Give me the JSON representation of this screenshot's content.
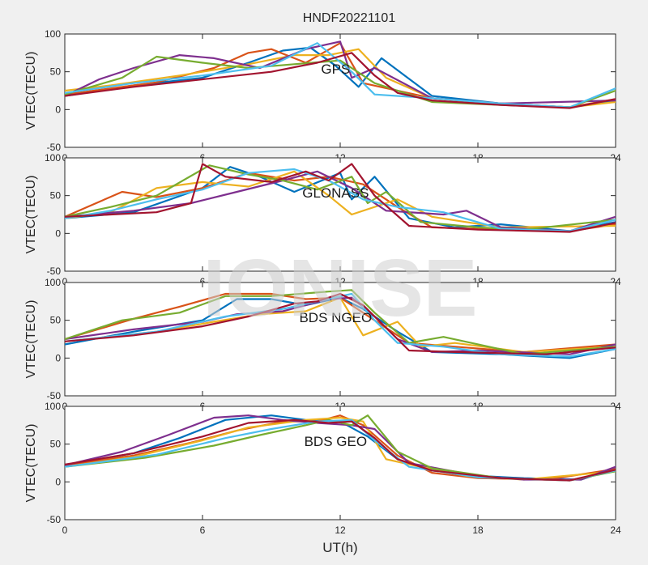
{
  "figure": {
    "title": "HNDF20221101",
    "xlabel": "UT(h)",
    "watermark": "IONISE"
  },
  "chart_data": [
    {
      "type": "line",
      "label": "GPS",
      "title": "HNDF20221101",
      "ylabel": "VTEC(TECU)",
      "xlabel": "",
      "xlim": [
        0,
        24
      ],
      "ylim": [
        -50,
        100
      ],
      "xticks": [
        0,
        6,
        12,
        18,
        24
      ],
      "yticks": [
        -50,
        0,
        50,
        100
      ],
      "grid": false,
      "series": [
        {
          "color": "#0072BD",
          "x": [
            0,
            3,
            6,
            8,
            9.5,
            10.7,
            11.8,
            12.8,
            13.8,
            16,
            19,
            22,
            24
          ],
          "y": [
            18,
            32,
            42,
            62,
            78,
            82,
            58,
            30,
            68,
            18,
            8,
            3,
            12
          ]
        },
        {
          "color": "#D95319",
          "x": [
            0,
            4,
            6.5,
            8,
            9,
            10.5,
            12,
            13,
            16,
            19,
            22,
            24
          ],
          "y": [
            20,
            36,
            55,
            75,
            80,
            62,
            88,
            35,
            15,
            8,
            3,
            14
          ]
        },
        {
          "color": "#EDB120",
          "x": [
            0,
            2,
            5,
            8,
            10,
            11.5,
            12.8,
            14,
            16,
            19,
            22,
            24
          ],
          "y": [
            25,
            32,
            45,
            60,
            72,
            72,
            80,
            42,
            15,
            7,
            3,
            10
          ]
        },
        {
          "color": "#7E2F8E",
          "x": [
            0,
            1.5,
            3,
            5,
            6.5,
            8.5,
            10.5,
            12,
            12.5,
            13.5,
            16,
            19,
            24
          ],
          "y": [
            18,
            40,
            55,
            72,
            68,
            55,
            80,
            90,
            42,
            55,
            15,
            8,
            12
          ]
        },
        {
          "color": "#77AC30",
          "x": [
            0,
            2.5,
            4,
            6,
            8,
            10,
            12,
            13.5,
            16,
            19,
            22,
            24
          ],
          "y": [
            20,
            42,
            70,
            62,
            55,
            60,
            65,
            35,
            10,
            6,
            3,
            25
          ]
        },
        {
          "color": "#4DBEEE",
          "x": [
            0,
            3,
            6,
            9,
            11,
            12.5,
            13.5,
            16,
            19,
            22,
            24
          ],
          "y": [
            22,
            35,
            45,
            58,
            88,
            50,
            20,
            15,
            8,
            3,
            28
          ]
        },
        {
          "color": "#A2142F",
          "x": [
            0,
            3,
            6,
            9,
            11,
            12.5,
            13.5,
            14.5,
            16,
            19,
            22,
            24
          ],
          "y": [
            18,
            30,
            40,
            50,
            62,
            75,
            45,
            22,
            12,
            6,
            2,
            14
          ]
        }
      ]
    },
    {
      "type": "line",
      "label": "GLONASS",
      "ylabel": "VTEC(TECU)",
      "xlabel": "",
      "xlim": [
        0,
        24
      ],
      "ylim": [
        -50,
        100
      ],
      "xticks": [
        0,
        6,
        12,
        18,
        24
      ],
      "yticks": [
        -50,
        0,
        50,
        100
      ],
      "grid": false,
      "series": [
        {
          "color": "#0072BD",
          "x": [
            0,
            3,
            6,
            7.2,
            8.5,
            10,
            12,
            12.5,
            13.5,
            15,
            17,
            19,
            22,
            24
          ],
          "y": [
            20,
            28,
            60,
            88,
            75,
            55,
            80,
            45,
            75,
            20,
            8,
            12,
            3,
            15
          ]
        },
        {
          "color": "#D95319",
          "x": [
            0,
            2.5,
            4,
            6,
            8,
            10,
            11.5,
            13,
            14.5,
            16,
            19,
            22,
            24
          ],
          "y": [
            22,
            55,
            48,
            60,
            80,
            70,
            75,
            65,
            35,
            8,
            5,
            3,
            12
          ]
        },
        {
          "color": "#EDB120",
          "x": [
            0,
            2,
            4,
            6,
            8,
            10,
            11.5,
            12.5,
            14.5,
            16,
            19,
            24
          ],
          "y": [
            20,
            28,
            60,
            68,
            62,
            82,
            50,
            25,
            45,
            22,
            8,
            10
          ]
        },
        {
          "color": "#7E2F8E",
          "x": [
            0,
            3,
            5.5,
            7.5,
            9.5,
            11,
            12.5,
            14,
            16.5,
            17.5,
            19,
            22,
            24
          ],
          "y": [
            22,
            30,
            40,
            55,
            70,
            82,
            60,
            30,
            25,
            30,
            8,
            3,
            22
          ]
        },
        {
          "color": "#77AC30",
          "x": [
            0,
            2,
            4,
            6.3,
            8,
            9.5,
            11,
            12.5,
            13.2,
            14,
            15.5,
            18,
            20,
            24
          ],
          "y": [
            22,
            35,
            50,
            90,
            78,
            70,
            58,
            75,
            40,
            55,
            15,
            8,
            5,
            18
          ]
        },
        {
          "color": "#4DBEEE",
          "x": [
            0,
            2,
            4,
            6,
            8,
            10,
            11.5,
            13,
            14.5,
            16.5,
            19,
            22,
            24
          ],
          "y": [
            20,
            30,
            45,
            58,
            80,
            85,
            70,
            45,
            35,
            28,
            6,
            3,
            18
          ]
        },
        {
          "color": "#A2142F",
          "x": [
            0,
            2,
            4,
            5.5,
            6,
            7,
            9,
            10.5,
            11.5,
            12.5,
            13.5,
            15,
            18,
            22,
            24
          ],
          "y": [
            22,
            25,
            28,
            40,
            92,
            75,
            68,
            82,
            70,
            92,
            50,
            10,
            5,
            2,
            14
          ]
        }
      ]
    },
    {
      "type": "line",
      "label": "BDS NGEO",
      "ylabel": "VTEC(TECU)",
      "xlabel": "",
      "xlim": [
        0,
        24
      ],
      "ylim": [
        -50,
        100
      ],
      "xticks": [
        0,
        6,
        12,
        18,
        24
      ],
      "yticks": [
        -50,
        0,
        50,
        100
      ],
      "grid": false,
      "series": [
        {
          "color": "#0072BD",
          "x": [
            0,
            3,
            6,
            7.5,
            9,
            10.5,
            12,
            13,
            14.5,
            16,
            19,
            22,
            24
          ],
          "y": [
            18,
            35,
            50,
            78,
            78,
            70,
            80,
            65,
            35,
            8,
            5,
            0,
            12
          ]
        },
        {
          "color": "#D95319",
          "x": [
            0,
            3,
            5,
            7,
            9,
            10.5,
            12,
            13.5,
            15,
            17,
            20,
            24
          ],
          "y": [
            25,
            52,
            68,
            85,
            85,
            78,
            80,
            50,
            20,
            15,
            8,
            18
          ]
        },
        {
          "color": "#EDB120",
          "x": [
            0,
            4,
            6.5,
            8.5,
            10.5,
            12,
            13,
            14.5,
            15.5,
            17,
            20,
            24
          ],
          "y": [
            22,
            35,
            48,
            58,
            62,
            80,
            30,
            48,
            15,
            20,
            8,
            15
          ]
        },
        {
          "color": "#7E2F8E",
          "x": [
            0,
            3,
            6,
            7.5,
            9.5,
            11.5,
            12.5,
            13.5,
            14.5,
            16,
            18,
            22,
            24
          ],
          "y": [
            25,
            38,
            48,
            58,
            62,
            78,
            80,
            55,
            25,
            8,
            10,
            5,
            18
          ]
        },
        {
          "color": "#77AC30",
          "x": [
            0,
            2.5,
            5,
            7,
            9,
            11.5,
            12.5,
            13.5,
            15,
            16.5,
            20,
            24
          ],
          "y": [
            25,
            50,
            60,
            82,
            82,
            88,
            90,
            60,
            20,
            28,
            5,
            15
          ]
        },
        {
          "color": "#4DBEEE",
          "x": [
            0,
            4,
            7,
            9.5,
            11,
            12.5,
            13.5,
            14.5,
            16.5,
            19,
            22,
            24
          ],
          "y": [
            22,
            35,
            55,
            65,
            75,
            85,
            50,
            20,
            15,
            5,
            2,
            12
          ]
        },
        {
          "color": "#A2142F",
          "x": [
            0,
            3,
            6,
            8,
            10,
            11,
            12,
            13,
            14,
            15,
            17,
            21,
            24
          ],
          "y": [
            22,
            30,
            42,
            55,
            72,
            75,
            85,
            70,
            40,
            10,
            8,
            5,
            14
          ]
        }
      ]
    },
    {
      "type": "line",
      "label": "BDS GEO",
      "ylabel": "VTEC(TECU)",
      "xlabel": "UT(h)",
      "xlim": [
        0,
        24
      ],
      "ylim": [
        -50,
        100
      ],
      "xticks": [
        0,
        6,
        12,
        18,
        24
      ],
      "yticks": [
        -50,
        0,
        50,
        100
      ],
      "grid": false,
      "series": [
        {
          "color": "#0072BD",
          "x": [
            0,
            3,
            5,
            7,
            9,
            10.5,
            12,
            13.2,
            14.5,
            16,
            18,
            20,
            22.5,
            24
          ],
          "y": [
            22,
            38,
            58,
            82,
            88,
            82,
            80,
            60,
            30,
            15,
            8,
            5,
            3,
            18
          ]
        },
        {
          "color": "#D95319",
          "x": [
            0,
            3,
            5.5,
            7.5,
            9.5,
            11,
            12,
            13,
            14.5,
            16,
            18,
            21,
            24
          ],
          "y": [
            22,
            35,
            52,
            68,
            80,
            80,
            88,
            75,
            35,
            12,
            5,
            3,
            17
          ]
        },
        {
          "color": "#EDB120",
          "x": [
            0,
            3,
            6,
            8,
            10.5,
            12,
            13,
            14,
            15.5,
            17.5,
            20,
            24
          ],
          "y": [
            20,
            33,
            55,
            72,
            82,
            85,
            80,
            30,
            20,
            8,
            3,
            14
          ]
        },
        {
          "color": "#7E2F8E",
          "x": [
            0,
            2.5,
            4.5,
            6.5,
            8,
            9.5,
            11,
            12.5,
            13.5,
            15,
            18,
            20,
            22.5,
            24
          ],
          "y": [
            22,
            40,
            62,
            85,
            88,
            82,
            78,
            75,
            70,
            25,
            8,
            3,
            3,
            20
          ]
        },
        {
          "color": "#77AC30",
          "x": [
            0,
            3.5,
            6.5,
            8.5,
            10.5,
            11.5,
            12.5,
            13.2,
            14.5,
            16,
            19,
            22,
            24
          ],
          "y": [
            20,
            32,
            48,
            62,
            75,
            82,
            75,
            88,
            40,
            18,
            5,
            2,
            14
          ]
        },
        {
          "color": "#4DBEEE",
          "x": [
            0,
            4,
            7,
            9,
            11,
            12.5,
            13.5,
            15,
            18,
            22,
            24
          ],
          "y": [
            20,
            36,
            58,
            70,
            80,
            82,
            55,
            20,
            6,
            2,
            15
          ]
        },
        {
          "color": "#A2142F",
          "x": [
            0,
            3,
            6,
            8,
            10,
            11.5,
            12.5,
            13.5,
            14.5,
            16,
            19,
            22,
            24
          ],
          "y": [
            23,
            38,
            60,
            78,
            82,
            78,
            80,
            58,
            30,
            15,
            5,
            2,
            16
          ]
        }
      ]
    }
  ]
}
